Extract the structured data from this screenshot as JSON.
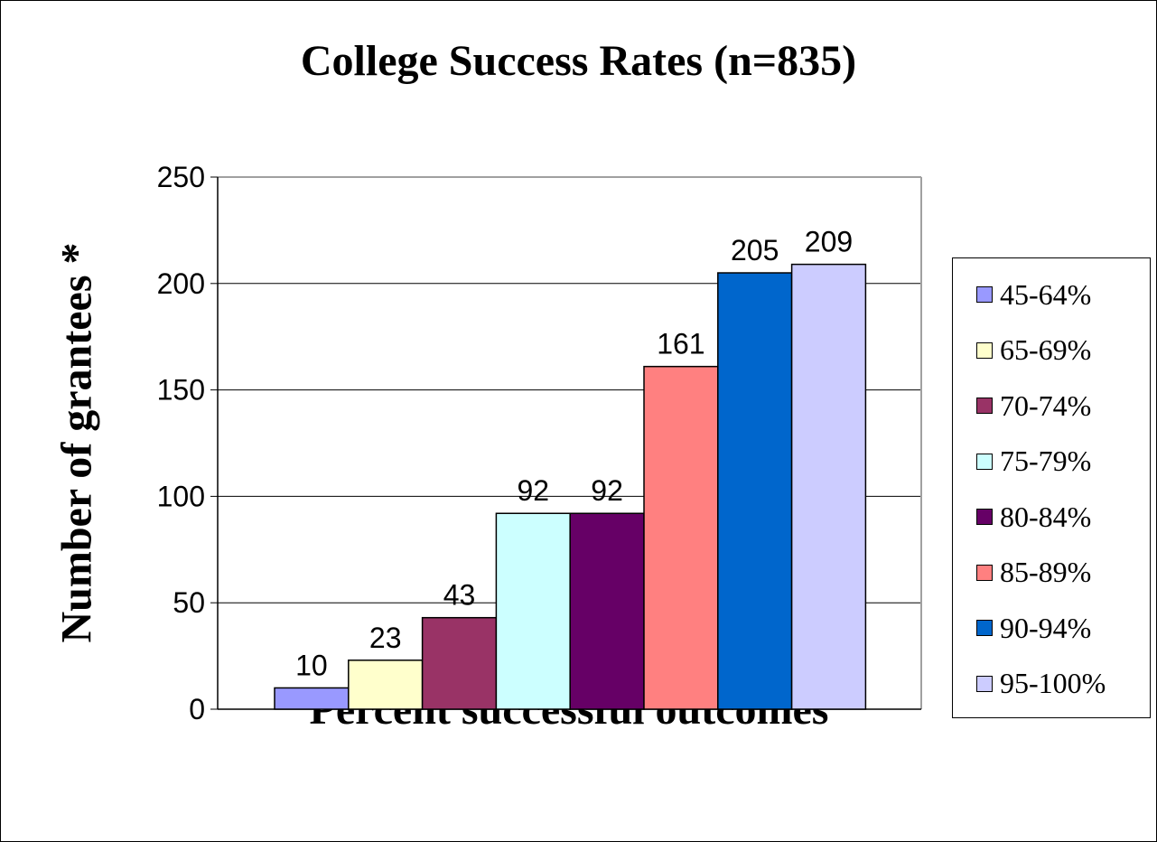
{
  "chart_data": {
    "type": "bar",
    "title": "College Success Rates (n=835)",
    "xlabel": "Percent successful outcomes",
    "ylabel": "Number of grantees *",
    "ylim": [
      0,
      250
    ],
    "yticks": [
      0,
      50,
      100,
      150,
      200,
      250
    ],
    "grid": true,
    "legend_position": "right",
    "series": [
      {
        "name": "45-64%",
        "value": 10,
        "color": "#9999ff"
      },
      {
        "name": "65-69%",
        "value": 23,
        "color": "#ffffcc"
      },
      {
        "name": "70-74%",
        "value": 43,
        "color": "#993366"
      },
      {
        "name": "75-79%",
        "value": 92,
        "color": "#ccffff"
      },
      {
        "name": "80-84%",
        "value": 92,
        "color": "#660066"
      },
      {
        "name": "85-89%",
        "value": 161,
        "color": "#ff8080"
      },
      {
        "name": "90-94%",
        "value": 205,
        "color": "#0066cc"
      },
      {
        "name": "95-100%",
        "value": 209,
        "color": "#ccccff"
      }
    ]
  }
}
